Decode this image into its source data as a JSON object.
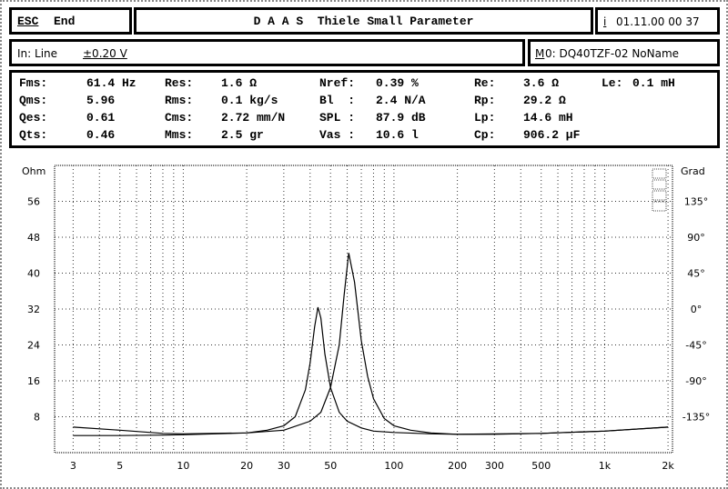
{
  "header": {
    "esc_key": "ESC",
    "end_label": "End",
    "title": "D A A S  Thiele Small Parameter",
    "info_key": "i",
    "datetime": "01.11.00 00 37"
  },
  "input": {
    "label": "In: Line",
    "range": "±0.20 V"
  },
  "model": {
    "key": "M",
    "label": "0: DQ40TZF-02 NoName"
  },
  "params": [
    [
      {
        "l": "Fms:",
        "v": "61.4 Hz"
      },
      {
        "l": "Res:",
        "v": "1.6 Ω"
      },
      {
        "l": "Nref:",
        "v": "0.39 %"
      },
      {
        "l": "Re:",
        "v": "3.6 Ω"
      },
      {
        "l": "Le:",
        "v": "0.1 mH"
      }
    ],
    [
      {
        "l": "Qms:",
        "v": "5.96"
      },
      {
        "l": "Rms:",
        "v": "0.1 kg/s"
      },
      {
        "l": "Bl  :",
        "v": "2.4 N/A"
      },
      {
        "l": "Rp:",
        "v": "29.2 Ω"
      }
    ],
    [
      {
        "l": "Qes:",
        "v": "0.61"
      },
      {
        "l": "Cms:",
        "v": "2.72 mm/N"
      },
      {
        "l": "SPL :",
        "v": "87.9 dB"
      },
      {
        "l": "Lp:",
        "v": "14.6 mH"
      }
    ],
    [
      {
        "l": "Qts:",
        "v": "0.46"
      },
      {
        "l": "Mms:",
        "v": "2.5 gr"
      },
      {
        "l": "Vas :",
        "v": "10.6 l"
      },
      {
        "l": "Cp:",
        "v": "906.2 µF"
      }
    ]
  ],
  "chart_data": {
    "type": "line",
    "x_scale": "log",
    "xlim": [
      2.45,
      2100
    ],
    "ylim": [
      0,
      64
    ],
    "y2lim": [
      -180,
      180
    ],
    "grid": true,
    "ylabel": "Ohm",
    "y2label": "Grad",
    "x_ticks": [
      {
        "v": 3,
        "t": "3"
      },
      {
        "v": 5,
        "t": "5"
      },
      {
        "v": 10,
        "t": "10"
      },
      {
        "v": 20,
        "t": "20"
      },
      {
        "v": 30,
        "t": "30"
      },
      {
        "v": 50,
        "t": "50"
      },
      {
        "v": 100,
        "t": "100"
      },
      {
        "v": 200,
        "t": "200"
      },
      {
        "v": 300,
        "t": "300"
      },
      {
        "v": 500,
        "t": "500"
      },
      {
        "v": 1000,
        "t": "1k"
      },
      {
        "v": 2000,
        "t": "2k"
      }
    ],
    "x_grid": [
      3,
      4,
      5,
      6,
      7,
      8,
      9,
      10,
      20,
      30,
      40,
      50,
      60,
      70,
      80,
      90,
      100,
      200,
      300,
      400,
      500,
      600,
      700,
      800,
      900,
      1000,
      2000
    ],
    "y_ticks": [
      {
        "v": 8,
        "t": "8"
      },
      {
        "v": 16,
        "t": "16"
      },
      {
        "v": 24,
        "t": "24"
      },
      {
        "v": 32,
        "t": "32"
      },
      {
        "v": 40,
        "t": "40"
      },
      {
        "v": 48,
        "t": "48"
      },
      {
        "v": 56,
        "t": "56"
      }
    ],
    "y2_ticks": [
      {
        "v": -135,
        "t": "-135°"
      },
      {
        "v": -90,
        "t": "-90°"
      },
      {
        "v": -45,
        "t": "-45°"
      },
      {
        "v": 0,
        "t": "0°"
      },
      {
        "v": 45,
        "t": "45°"
      },
      {
        "v": 90,
        "t": "90°"
      },
      {
        "v": 135,
        "t": "135°"
      }
    ],
    "series": [
      {
        "x": [
          3,
          5,
          8,
          10,
          20,
          30,
          40,
          45,
          50,
          55,
          58,
          61,
          65,
          70,
          75,
          80,
          90,
          100,
          120,
          150,
          200,
          300,
          500,
          1000,
          2000
        ],
        "y": [
          5.7,
          5.0,
          4.3,
          4.2,
          4.4,
          5.0,
          7,
          9,
          14.5,
          24,
          35,
          44.5,
          38,
          25,
          17,
          12,
          7.6,
          6,
          5,
          4.4,
          4.1,
          4.1,
          4.3,
          4.8,
          5.7
        ]
      },
      {
        "x": [
          3,
          5,
          8,
          10,
          20,
          25,
          30,
          34,
          38,
          40,
          42,
          43.6,
          45,
          47,
          50,
          55,
          60,
          70,
          80,
          100,
          150,
          200,
          500,
          1000,
          2000
        ],
        "y": [
          3.8,
          3.8,
          3.9,
          4.0,
          4.4,
          5.0,
          6,
          8,
          14,
          20,
          28,
          32.4,
          30,
          22,
          14.5,
          9,
          7,
          5.5,
          4.8,
          4.5,
          4.2,
          4.1,
          4.3,
          4.8,
          5.7
        ]
      }
    ]
  }
}
